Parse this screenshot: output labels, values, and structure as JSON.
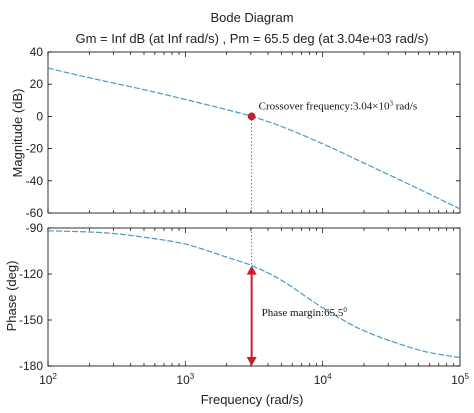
{
  "chart_data": {
    "type": "line",
    "title": "Bode Diagram",
    "subtitle": "Gm = Inf dB (at Inf rad/s) ,  Pm = 65.5 deg (at 3.04e+03 rad/s)",
    "xlabel": "Frequency  (rad/s)",
    "xscale": "log",
    "xlim": [
      100,
      100000
    ],
    "x_ticks": [
      {
        "base": "10",
        "exp": "2"
      },
      {
        "base": "10",
        "exp": "3"
      },
      {
        "base": "10",
        "exp": "4"
      },
      {
        "base": "10",
        "exp": "5"
      }
    ],
    "line_color": "#4a9bc9",
    "marker_color": "#c8202a",
    "panels": [
      {
        "id": "magnitude",
        "ylabel": "Magnitude (dB)",
        "ylim": [
          -60,
          40
        ],
        "yticks": [
          "40",
          "20",
          "0",
          "-20",
          "-40",
          "-60"
        ],
        "x": [
          100,
          200,
          500,
          1000,
          2000,
          3040,
          5000,
          10000,
          20000,
          50000,
          100000
        ],
        "y": [
          30,
          24,
          16.6,
          10.5,
          4.2,
          0,
          -6.2,
          -17,
          -29,
          -45,
          -57.5
        ]
      },
      {
        "id": "phase",
        "ylabel": "Phase (deg)",
        "ylim": [
          -180,
          -90
        ],
        "yticks": [
          "-90",
          "-120",
          "-150",
          "-180"
        ],
        "x": [
          100,
          200,
          300,
          500,
          1000,
          2000,
          3040,
          5000,
          10000,
          20000,
          50000,
          100000
        ],
        "y": [
          -91.8,
          -92.6,
          -93.6,
          -96,
          -100.5,
          -109,
          -114.5,
          -124,
          -142,
          -157,
          -169.5,
          -174.5
        ]
      }
    ],
    "annotations": {
      "crossover": {
        "text": "Crossover frequency:3.04×10",
        "sup": "3",
        "unit": " rad/s",
        "x": 3040,
        "y": 0
      },
      "phase_margin": {
        "text": "Phase margin:65.5",
        "sup": "0",
        "x": 3040,
        "from": -114.5,
        "to": -180
      }
    }
  }
}
